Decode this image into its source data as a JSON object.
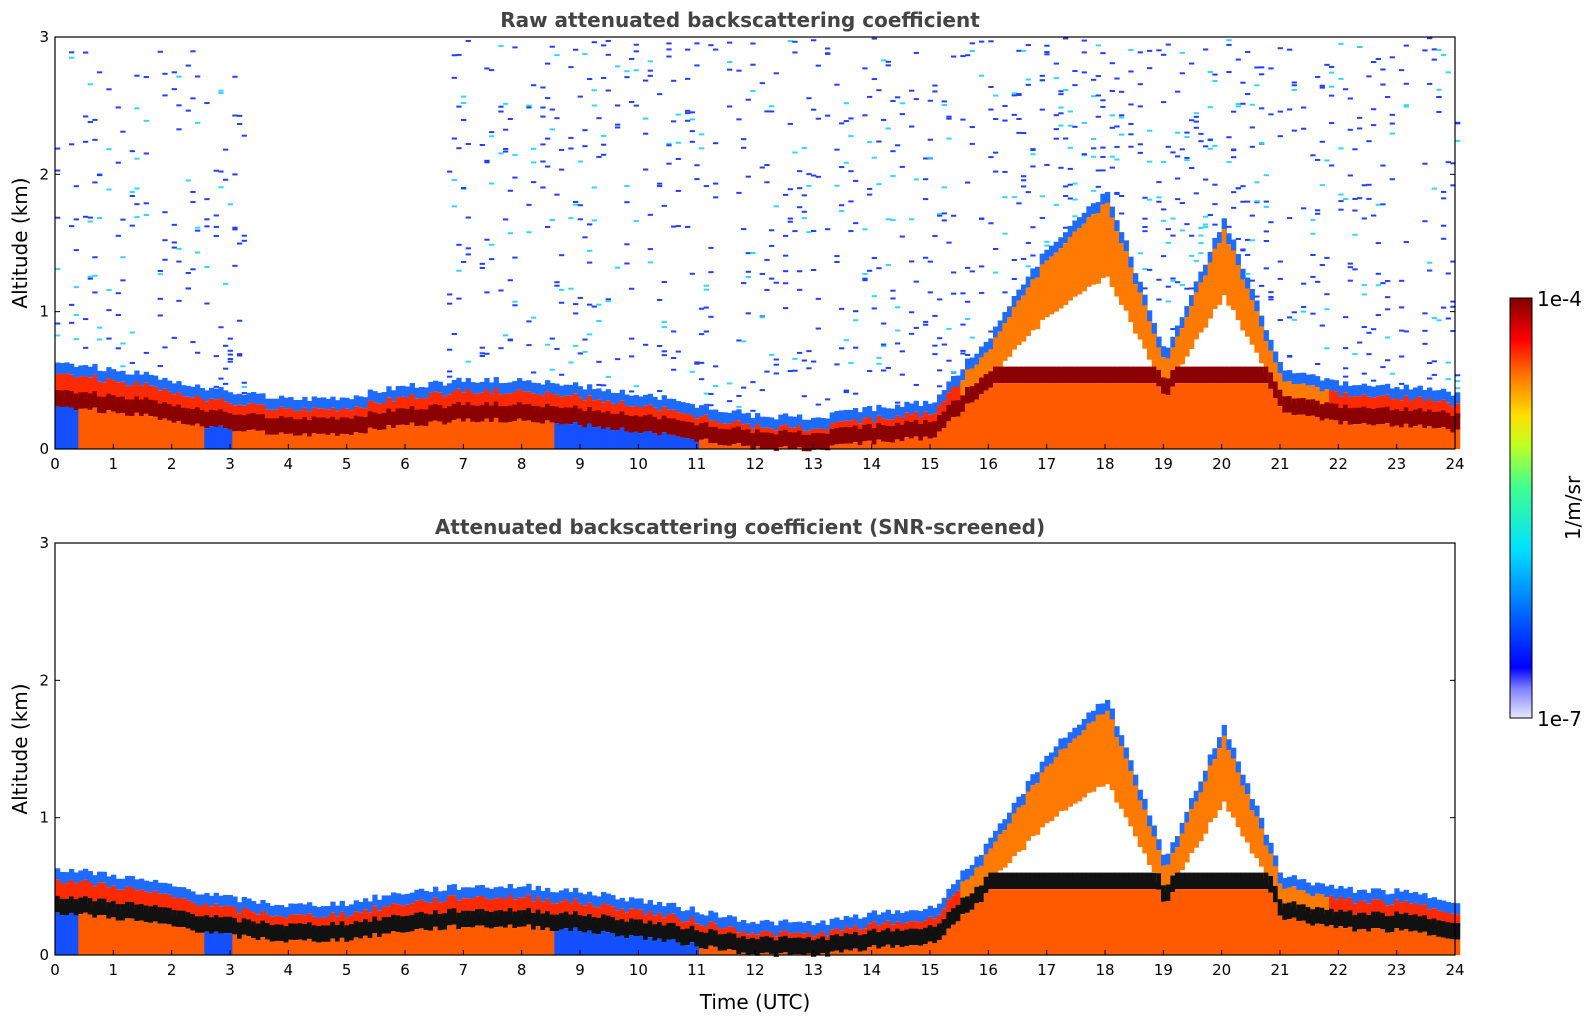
{
  "chart_data": [
    {
      "type": "heatmap",
      "title": "Raw attenuated backscattering coefficient",
      "xlabel": "",
      "ylabel": "Altitude (km)",
      "xlim": [
        0,
        24
      ],
      "ylim": [
        0,
        3
      ],
      "xticks": [
        "0",
        "1",
        "2",
        "3",
        "4",
        "5",
        "6",
        "7",
        "8",
        "9",
        "10",
        "11",
        "12",
        "13",
        "14",
        "15",
        "16",
        "17",
        "18",
        "19",
        "20",
        "21",
        "22",
        "23",
        "24"
      ],
      "yticks": [
        "0",
        "1",
        "2",
        "3"
      ],
      "boundary_layer_top_km": [
        [
          0,
          0.55
        ],
        [
          1,
          0.5
        ],
        [
          2,
          0.42
        ],
        [
          3,
          0.33
        ],
        [
          4,
          0.28
        ],
        [
          5,
          0.3
        ],
        [
          6,
          0.38
        ],
        [
          7,
          0.42
        ],
        [
          8,
          0.42
        ],
        [
          9,
          0.38
        ],
        [
          10,
          0.32
        ],
        [
          11,
          0.24
        ],
        [
          12,
          0.16
        ],
        [
          13,
          0.15
        ],
        [
          14,
          0.22
        ],
        [
          15,
          0.26
        ],
        [
          16,
          0.75
        ],
        [
          17,
          1.4
        ],
        [
          18,
          1.8
        ],
        [
          19,
          0.6
        ],
        [
          20,
          1.6
        ],
        [
          21,
          0.5
        ],
        [
          22,
          0.4
        ],
        [
          23,
          0.38
        ],
        [
          24,
          0.32
        ]
      ],
      "noise_region": "0-3 km above boundary layer"
    },
    {
      "type": "heatmap",
      "title": "Attenuated backscattering coefficient (SNR-screened)",
      "xlabel": "Time (UTC)",
      "ylabel": "Altitude (km)",
      "xlim": [
        0,
        24
      ],
      "ylim": [
        0,
        3
      ],
      "xticks": [
        "0",
        "1",
        "2",
        "3",
        "4",
        "5",
        "6",
        "7",
        "8",
        "9",
        "10",
        "11",
        "12",
        "13",
        "14",
        "15",
        "16",
        "17",
        "18",
        "19",
        "20",
        "21",
        "22",
        "23",
        "24"
      ],
      "yticks": [
        "0",
        "1",
        "2",
        "3"
      ]
    }
  ],
  "colorbar": {
    "label": "1/m/sr",
    "max_label": "1e-4",
    "min_label": "1e-7",
    "scale": "log",
    "range": [
      1e-07,
      0.0001
    ],
    "colormap": "jet"
  }
}
